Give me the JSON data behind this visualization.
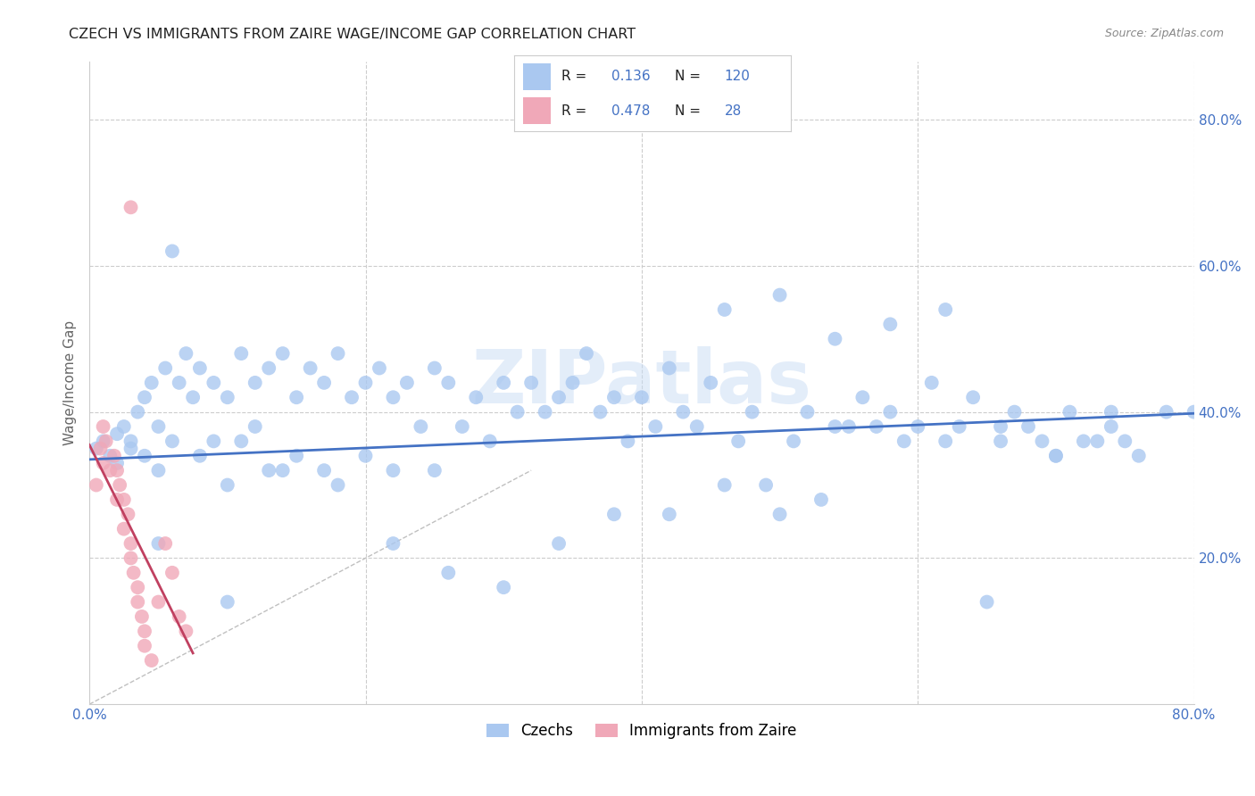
{
  "title": "CZECH VS IMMIGRANTS FROM ZAIRE WAGE/INCOME GAP CORRELATION CHART",
  "source": "Source: ZipAtlas.com",
  "ylabel": "Wage/Income Gap",
  "xlim": [
    0.0,
    0.8
  ],
  "ylim": [
    0.0,
    0.88
  ],
  "color_czech": "#aac8f0",
  "color_zaire": "#f0a8b8",
  "color_line_czech": "#4472c4",
  "color_line_zaire": "#c04060",
  "color_diag": "#c8c8c8",
  "background_color": "#ffffff",
  "grid_color": "#cccccc",
  "title_color": "#222222",
  "axis_label_color": "#666666",
  "tick_label_color": "#4472c4",
  "watermark": "ZIPatlas",
  "czechs_x": [
    0.005,
    0.01,
    0.015,
    0.02,
    0.02,
    0.025,
    0.03,
    0.03,
    0.035,
    0.04,
    0.04,
    0.045,
    0.05,
    0.05,
    0.055,
    0.06,
    0.06,
    0.065,
    0.07,
    0.075,
    0.08,
    0.08,
    0.09,
    0.09,
    0.1,
    0.1,
    0.11,
    0.11,
    0.12,
    0.12,
    0.13,
    0.13,
    0.14,
    0.15,
    0.15,
    0.16,
    0.17,
    0.17,
    0.18,
    0.19,
    0.2,
    0.2,
    0.21,
    0.22,
    0.22,
    0.23,
    0.24,
    0.25,
    0.25,
    0.26,
    0.27,
    0.28,
    0.29,
    0.3,
    0.31,
    0.32,
    0.33,
    0.34,
    0.35,
    0.36,
    0.37,
    0.38,
    0.39,
    0.4,
    0.41,
    0.42,
    0.43,
    0.44,
    0.45,
    0.46,
    0.47,
    0.48,
    0.49,
    0.5,
    0.51,
    0.52,
    0.53,
    0.54,
    0.55,
    0.56,
    0.57,
    0.58,
    0.59,
    0.6,
    0.61,
    0.62,
    0.63,
    0.64,
    0.65,
    0.66,
    0.67,
    0.68,
    0.69,
    0.7,
    0.71,
    0.72,
    0.73,
    0.74,
    0.75,
    0.76,
    0.14,
    0.18,
    0.22,
    0.26,
    0.3,
    0.34,
    0.38,
    0.42,
    0.46,
    0.5,
    0.54,
    0.58,
    0.62,
    0.66,
    0.7,
    0.74,
    0.78,
    0.8,
    0.05,
    0.1
  ],
  "czechs_y": [
    0.35,
    0.36,
    0.34,
    0.37,
    0.33,
    0.38,
    0.36,
    0.35,
    0.4,
    0.42,
    0.34,
    0.44,
    0.38,
    0.32,
    0.46,
    0.62,
    0.36,
    0.44,
    0.48,
    0.42,
    0.46,
    0.34,
    0.44,
    0.36,
    0.42,
    0.3,
    0.48,
    0.36,
    0.44,
    0.38,
    0.46,
    0.32,
    0.48,
    0.42,
    0.34,
    0.46,
    0.44,
    0.32,
    0.48,
    0.42,
    0.44,
    0.34,
    0.46,
    0.42,
    0.32,
    0.44,
    0.38,
    0.46,
    0.32,
    0.44,
    0.38,
    0.42,
    0.36,
    0.44,
    0.4,
    0.44,
    0.4,
    0.42,
    0.44,
    0.48,
    0.4,
    0.42,
    0.36,
    0.42,
    0.38,
    0.46,
    0.4,
    0.38,
    0.44,
    0.3,
    0.36,
    0.4,
    0.3,
    0.26,
    0.36,
    0.4,
    0.28,
    0.38,
    0.38,
    0.42,
    0.38,
    0.4,
    0.36,
    0.38,
    0.44,
    0.36,
    0.38,
    0.42,
    0.14,
    0.38,
    0.4,
    0.38,
    0.36,
    0.34,
    0.4,
    0.36,
    0.36,
    0.4,
    0.36,
    0.34,
    0.32,
    0.3,
    0.22,
    0.18,
    0.16,
    0.22,
    0.26,
    0.26,
    0.54,
    0.56,
    0.5,
    0.52,
    0.54,
    0.36,
    0.34,
    0.38,
    0.4,
    0.4,
    0.22,
    0.14
  ],
  "zaire_x": [
    0.005,
    0.008,
    0.01,
    0.01,
    0.012,
    0.015,
    0.018,
    0.02,
    0.02,
    0.022,
    0.025,
    0.025,
    0.028,
    0.03,
    0.03,
    0.032,
    0.035,
    0.035,
    0.038,
    0.04,
    0.04,
    0.045,
    0.05,
    0.055,
    0.06,
    0.065,
    0.07,
    0.03
  ],
  "zaire_y": [
    0.3,
    0.35,
    0.33,
    0.38,
    0.36,
    0.32,
    0.34,
    0.28,
    0.32,
    0.3,
    0.28,
    0.24,
    0.26,
    0.2,
    0.22,
    0.18,
    0.16,
    0.14,
    0.12,
    0.1,
    0.08,
    0.06,
    0.14,
    0.22,
    0.18,
    0.12,
    0.1,
    0.68
  ],
  "czech_line_x": [
    0.0,
    0.8
  ],
  "czech_line_y": [
    0.335,
    0.398
  ],
  "zaire_line_x": [
    0.0,
    0.075
  ],
  "zaire_line_y": [
    0.355,
    0.07
  ]
}
